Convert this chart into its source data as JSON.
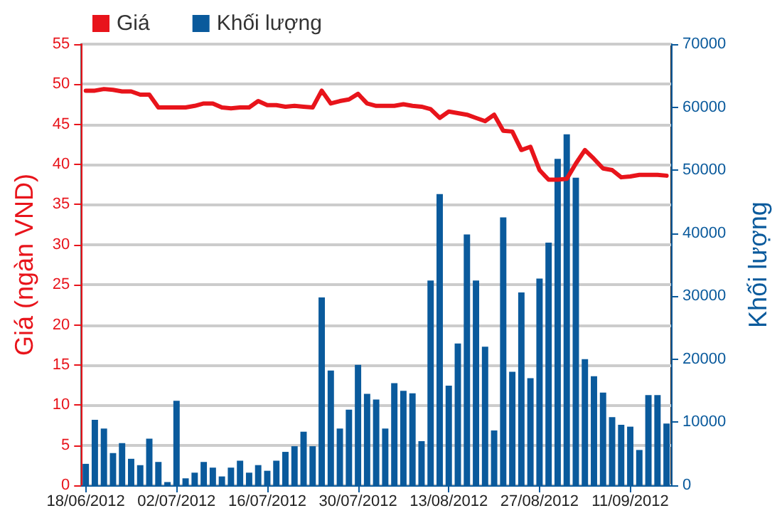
{
  "chart_data": {
    "type": "bar",
    "categories": [
      "18/06/2012",
      null,
      null,
      null,
      null,
      null,
      null,
      null,
      null,
      null,
      "02/07/2012",
      null,
      null,
      null,
      null,
      null,
      null,
      null,
      null,
      null,
      "16/07/2012",
      null,
      null,
      null,
      null,
      null,
      null,
      null,
      null,
      null,
      "30/07/2012",
      null,
      null,
      null,
      null,
      null,
      null,
      null,
      null,
      null,
      "13/08/2012",
      null,
      null,
      null,
      null,
      null,
      null,
      null,
      null,
      null,
      "27/08/2012",
      null,
      null,
      null,
      null,
      null,
      null,
      null,
      null,
      null,
      "11/09/2012",
      null,
      null,
      null,
      null
    ],
    "series": [
      {
        "name": "Giá",
        "type": "line",
        "color": "#e8141b",
        "values": [
          49.2,
          49.2,
          49.4,
          49.3,
          49.1,
          49.1,
          48.7,
          48.7,
          47.1,
          47.1,
          47.1,
          47.1,
          47.3,
          47.6,
          47.6,
          47.1,
          47.0,
          47.1,
          47.1,
          47.9,
          47.4,
          47.4,
          47.2,
          47.3,
          47.2,
          47.1,
          49.2,
          47.6,
          47.9,
          48.1,
          48.8,
          47.6,
          47.3,
          47.3,
          47.3,
          47.5,
          47.3,
          47.2,
          46.9,
          45.8,
          46.6,
          46.4,
          46.2,
          45.8,
          45.4,
          46.2,
          44.2,
          44.1,
          41.8,
          42.2,
          39.3,
          38.1,
          38.1,
          38.2,
          40.1,
          41.8,
          40.7,
          39.5,
          39.3,
          38.4,
          38.5,
          38.7,
          38.7,
          38.7,
          38.6
        ]
      },
      {
        "name": "Khối lượng",
        "axis": "y2",
        "color": "#0a5a9c",
        "values": [
          3400,
          10400,
          9000,
          5100,
          6700,
          4200,
          3200,
          7400,
          3700,
          500,
          13400,
          1100,
          2000,
          3700,
          2800,
          1400,
          2800,
          3900,
          2000,
          3200,
          2300,
          3900,
          5300,
          6200,
          8500,
          6200,
          29800,
          18200,
          9000,
          12000,
          19100,
          14500,
          13600,
          9000,
          16200,
          15000,
          14600,
          7000,
          32500,
          46200,
          15800,
          22500,
          39800,
          32500,
          22000,
          8700,
          42500,
          18000,
          30600,
          17000,
          32800,
          38500,
          51800,
          55700,
          48800,
          20000,
          17300,
          14700,
          10800,
          9600,
          9300,
          5600,
          14300,
          14300,
          9800
        ]
      }
    ],
    "ylabel": "Giá (ngàn VND)",
    "y2label": "Khối lượng",
    "ylim": [
      0,
      55
    ],
    "yticks": [
      0,
      5,
      10,
      15,
      20,
      25,
      30,
      35,
      40,
      45,
      50,
      55
    ],
    "y2lim": [
      0,
      70000
    ],
    "y2ticks": [
      0,
      10000,
      20000,
      30000,
      40000,
      50000,
      60000,
      70000
    ],
    "grid": "y",
    "legend": "top left",
    "marker": "none",
    "line_style": "solid"
  }
}
